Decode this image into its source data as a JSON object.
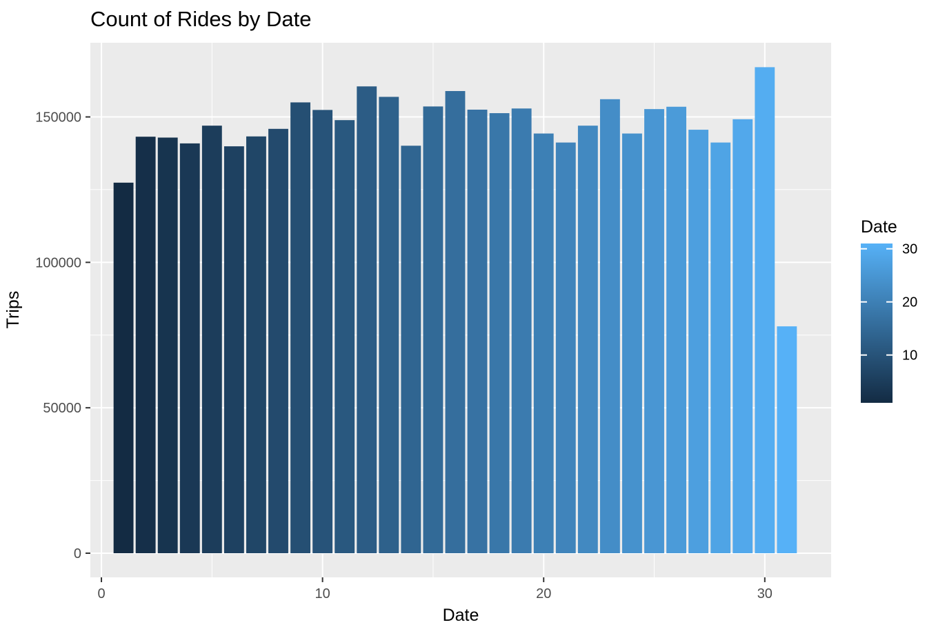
{
  "chart_data": {
    "type": "bar",
    "title": "Count of Rides by Date",
    "xlabel": "Date",
    "ylabel": "Trips",
    "x": [
      1,
      2,
      3,
      4,
      5,
      6,
      7,
      8,
      9,
      10,
      11,
      12,
      13,
      14,
      15,
      16,
      17,
      18,
      19,
      20,
      21,
      22,
      23,
      24,
      25,
      26,
      27,
      28,
      29,
      30,
      31
    ],
    "values": [
      127400,
      143200,
      142900,
      140900,
      147000,
      139900,
      143300,
      145900,
      155000,
      152400,
      148900,
      160500,
      156900,
      140100,
      153600,
      158900,
      152500,
      151300,
      152900,
      144300,
      141200,
      147000,
      156100,
      144300,
      152700,
      153500,
      145600,
      141200,
      149200,
      167100,
      78000
    ],
    "xlim": [
      -0.5,
      33.0
    ],
    "ylim": [
      -8300,
      175500
    ],
    "x_ticks": [
      0,
      10,
      20,
      30
    ],
    "x_tick_labels": [
      "0",
      "10",
      "20",
      "30"
    ],
    "y_ticks": [
      0,
      50000,
      100000,
      150000
    ],
    "y_tick_labels": [
      "0",
      "50000",
      "100000",
      "150000"
    ],
    "grid": true,
    "fill_gradient": {
      "low": "#132b43",
      "high": "#56b1f7"
    },
    "legend": {
      "title": "Date",
      "placement": "right",
      "breaks": [
        10,
        20,
        30
      ],
      "labels": [
        "10",
        "20",
        "30"
      ],
      "range": [
        1,
        31
      ]
    },
    "colors": {
      "panel": "#ebebeb",
      "grid": "#ffffff"
    }
  }
}
